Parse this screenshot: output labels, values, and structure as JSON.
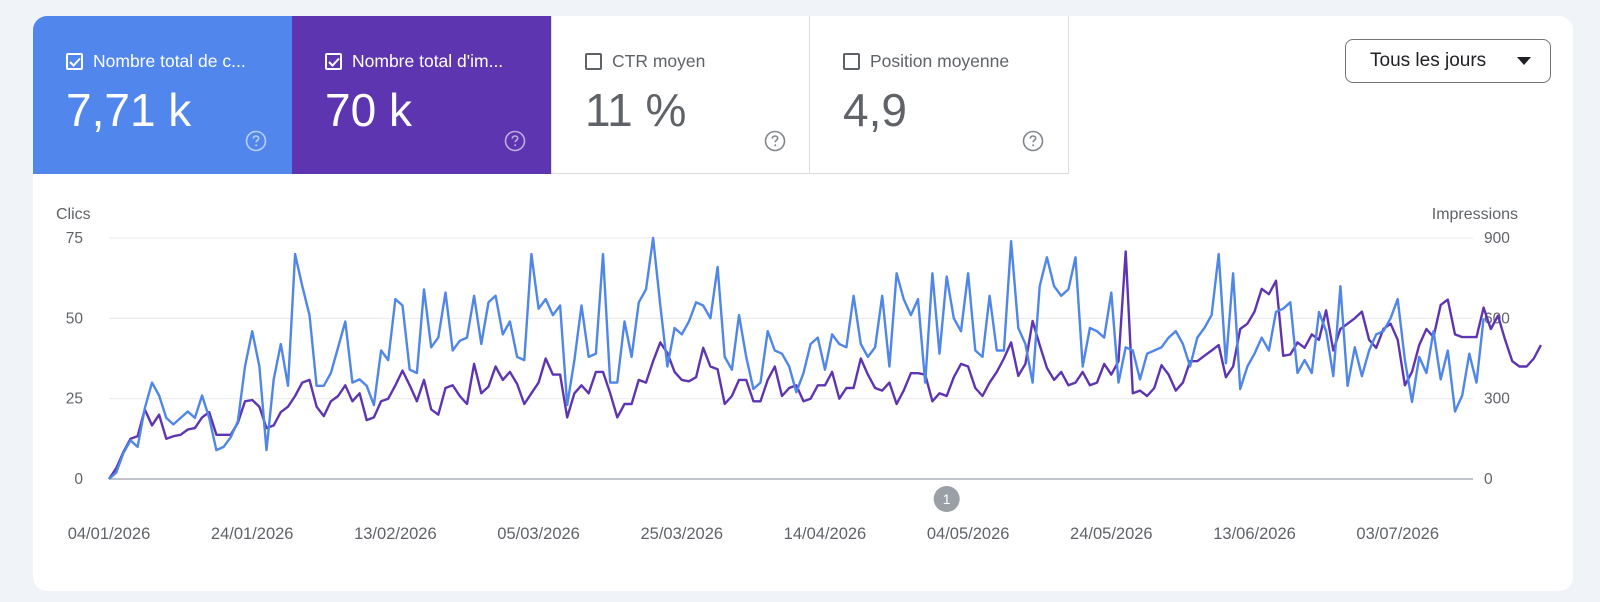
{
  "metrics": [
    {
      "label": "Nombre total de c...",
      "value": "7,71 k",
      "checked": true,
      "color": "#5187ec",
      "help_icon": "help-circle-icon"
    },
    {
      "label": "Nombre total d'im...",
      "value": "70 k",
      "checked": true,
      "color": "#5e35b1",
      "help_icon": "help-circle-icon"
    },
    {
      "label": "CTR moyen",
      "value": "11 %",
      "checked": false,
      "help_icon": "help-circle-icon"
    },
    {
      "label": "Position moyenne",
      "value": "4,9",
      "checked": false,
      "help_icon": "help-circle-icon"
    }
  ],
  "dropdown": {
    "label": "Tous les jours",
    "icon": "arrow-drop-down-icon"
  },
  "chart_data": {
    "type": "line",
    "ylabel_left": "Clics",
    "ylabel_right": "Impressions",
    "left_ticks": [
      "0",
      "25",
      "50",
      "75"
    ],
    "right_ticks": [
      "0",
      "300",
      "600",
      "900"
    ],
    "ylim_left": [
      0,
      75
    ],
    "ylim_right": [
      0,
      900
    ],
    "x_tick_labels": [
      "04/01/2026",
      "24/01/2026",
      "13/02/2026",
      "05/03/2026",
      "25/03/2026",
      "14/04/2026",
      "04/05/2026",
      "24/05/2026",
      "13/06/2026",
      "03/07/2026"
    ],
    "x_start": "04/01/2026",
    "x_end": "11/07/2026",
    "annotation": "1",
    "annotation_date": "01/05/2026",
    "grid": true,
    "series": [
      {
        "name": "Nombre total de clics",
        "axis": "left",
        "color": "#4f86e8",
        "values": [
          0,
          2,
          8,
          12,
          10,
          22,
          30,
          26,
          19,
          17,
          19,
          21,
          19,
          26,
          19,
          9,
          10,
          13,
          18,
          35,
          46,
          35,
          9,
          31,
          42,
          29,
          70,
          60,
          51,
          29,
          29,
          33,
          41,
          49,
          30,
          31,
          29,
          23,
          40,
          37,
          56,
          54,
          34,
          33,
          59,
          41,
          44,
          58,
          40,
          43,
          44,
          57,
          42,
          55,
          57,
          45,
          49,
          38,
          37,
          70,
          53,
          56,
          51,
          54,
          23,
          37,
          54,
          38,
          39,
          70,
          30,
          30,
          49,
          38,
          55,
          59,
          75,
          54,
          35,
          47,
          45,
          49,
          55,
          54,
          50,
          66,
          38,
          34,
          51,
          38,
          28,
          30,
          46,
          40,
          39,
          35,
          27,
          33,
          42,
          44,
          34,
          45,
          42,
          41,
          57,
          42,
          38,
          41,
          57,
          35,
          64,
          56,
          51,
          56,
          30,
          64,
          39,
          63,
          50,
          46,
          64,
          40,
          38,
          57,
          40,
          40,
          74,
          47,
          42,
          30,
          60,
          69,
          60,
          57,
          59,
          69,
          35,
          47,
          46,
          44,
          58,
          30,
          41,
          40,
          31,
          39,
          40,
          41,
          44,
          46,
          42,
          35,
          44,
          47,
          51,
          70,
          36,
          64,
          28,
          35,
          39,
          44,
          40,
          52,
          53,
          55,
          33,
          37,
          33,
          52,
          46,
          32,
          60,
          29,
          41,
          32,
          40,
          45,
          46,
          50,
          56,
          37,
          24,
          38,
          33,
          46,
          31,
          40,
          21,
          26,
          39,
          30,
          50
        ]
      },
      {
        "name": "Nombre total d'impressions",
        "axis": "right",
        "color": "#5e35b1",
        "values": [
          0,
          40,
          100,
          150,
          160,
          260,
          200,
          240,
          150,
          160,
          165,
          185,
          190,
          230,
          250,
          165,
          165,
          165,
          210,
          290,
          295,
          270,
          190,
          200,
          250,
          270,
          310,
          360,
          370,
          270,
          235,
          290,
          310,
          350,
          290,
          320,
          220,
          230,
          290,
          300,
          350,
          405,
          350,
          290,
          370,
          260,
          240,
          340,
          350,
          310,
          280,
          430,
          320,
          345,
          420,
          370,
          400,
          355,
          280,
          320,
          360,
          450,
          390,
          390,
          230,
          320,
          350,
          320,
          400,
          400,
          320,
          230,
          280,
          280,
          370,
          360,
          440,
          510,
          470,
          400,
          370,
          365,
          380,
          490,
          420,
          410,
          280,
          310,
          370,
          370,
          290,
          290,
          370,
          420,
          310,
          340,
          350,
          290,
          300,
          350,
          350,
          400,
          300,
          340,
          340,
          450,
          390,
          340,
          330,
          360,
          280,
          330,
          395,
          395,
          390,
          290,
          320,
          310,
          380,
          430,
          420,
          340,
          310,
          360,
          400,
          450,
          510,
          385,
          430,
          590,
          500,
          415,
          370,
          400,
          350,
          360,
          400,
          350,
          360,
          430,
          390,
          440,
          850,
          320,
          330,
          310,
          340,
          425,
          390,
          330,
          360,
          440,
          440,
          460,
          480,
          500,
          380,
          420,
          560,
          580,
          625,
          710,
          690,
          740,
          460,
          465,
          510,
          490,
          540,
          520,
          630,
          480,
          560,
          580,
          600,
          625,
          520,
          490,
          560,
          580,
          520,
          350,
          400,
          500,
          560,
          530,
          650,
          670,
          540,
          530,
          530,
          530,
          640,
          560,
          610,
          520,
          440,
          420,
          420,
          450,
          500
        ]
      }
    ]
  }
}
